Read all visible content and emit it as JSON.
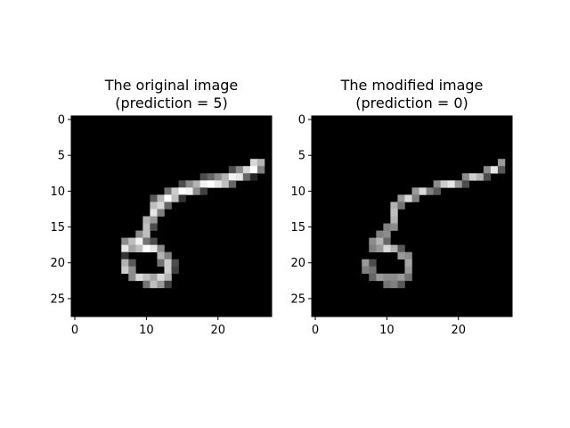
{
  "chart_data": [
    {
      "type": "heatmap",
      "colormap": "gray",
      "title_line1": "The original image",
      "title_line2": "(prediction = 5)",
      "grid": false,
      "xlim": [
        -0.5,
        27.5
      ],
      "ylim": [
        27.5,
        -0.5
      ],
      "xticks": [
        0,
        10,
        20
      ],
      "yticks": [
        0,
        5,
        10,
        15,
        20,
        25
      ],
      "value_range": [
        0,
        1
      ],
      "pixels": [
        [
          6,
          25,
          0.85
        ],
        [
          6,
          26,
          0.7
        ],
        [
          7,
          22,
          0.3
        ],
        [
          7,
          23,
          0.55
        ],
        [
          7,
          24,
          0.85
        ],
        [
          7,
          25,
          1.0
        ],
        [
          7,
          26,
          0.5
        ],
        [
          8,
          18,
          0.3
        ],
        [
          8,
          19,
          0.4
        ],
        [
          8,
          20,
          0.55
        ],
        [
          8,
          21,
          0.7
        ],
        [
          8,
          22,
          0.95
        ],
        [
          8,
          23,
          0.9
        ],
        [
          8,
          24,
          0.4
        ],
        [
          8,
          25,
          0.15
        ],
        [
          9,
          15,
          0.3
        ],
        [
          9,
          16,
          0.55
        ],
        [
          9,
          17,
          0.7
        ],
        [
          9,
          18,
          0.95
        ],
        [
          9,
          19,
          1.0
        ],
        [
          9,
          20,
          0.9
        ],
        [
          9,
          21,
          0.75
        ],
        [
          9,
          22,
          0.4
        ],
        [
          10,
          13,
          0.45
        ],
        [
          10,
          14,
          0.8
        ],
        [
          10,
          15,
          1.0
        ],
        [
          10,
          16,
          0.95
        ],
        [
          10,
          17,
          0.55
        ],
        [
          10,
          18,
          0.25
        ],
        [
          11,
          11,
          0.35
        ],
        [
          11,
          12,
          0.7
        ],
        [
          11,
          13,
          1.0
        ],
        [
          11,
          14,
          0.75
        ],
        [
          11,
          15,
          0.2
        ],
        [
          12,
          11,
          0.75
        ],
        [
          12,
          12,
          0.85
        ],
        [
          12,
          13,
          0.4
        ],
        [
          13,
          11,
          0.9
        ],
        [
          13,
          12,
          0.5
        ],
        [
          14,
          10,
          0.7
        ],
        [
          14,
          11,
          0.6
        ],
        [
          15,
          10,
          0.75
        ],
        [
          15,
          11,
          0.3
        ],
        [
          16,
          9,
          0.55
        ],
        [
          16,
          10,
          0.75
        ],
        [
          17,
          7,
          0.55
        ],
        [
          17,
          8,
          0.75
        ],
        [
          17,
          9,
          0.95
        ],
        [
          17,
          10,
          0.45
        ],
        [
          17,
          11,
          0.3
        ],
        [
          18,
          7,
          0.9
        ],
        [
          18,
          8,
          0.65
        ],
        [
          18,
          9,
          0.75
        ],
        [
          18,
          10,
          1.0
        ],
        [
          18,
          11,
          0.9
        ],
        [
          18,
          12,
          0.55
        ],
        [
          19,
          7,
          0.2
        ],
        [
          19,
          12,
          0.7
        ],
        [
          19,
          13,
          0.5
        ],
        [
          20,
          7,
          0.7
        ],
        [
          20,
          8,
          0.35
        ],
        [
          20,
          12,
          0.45
        ],
        [
          20,
          13,
          0.8
        ],
        [
          20,
          14,
          0.3
        ],
        [
          21,
          7,
          0.8
        ],
        [
          21,
          8,
          0.55
        ],
        [
          21,
          13,
          0.8
        ],
        [
          21,
          14,
          0.25
        ],
        [
          22,
          8,
          0.55
        ],
        [
          22,
          9,
          0.85
        ],
        [
          22,
          10,
          0.75
        ],
        [
          22,
          11,
          0.65
        ],
        [
          22,
          12,
          0.85
        ],
        [
          22,
          13,
          0.7
        ],
        [
          23,
          10,
          0.45
        ],
        [
          23,
          11,
          0.75
        ],
        [
          23,
          12,
          0.6
        ],
        [
          23,
          13,
          0.25
        ]
      ]
    },
    {
      "type": "heatmap",
      "colormap": "gray",
      "title_line1": "The modified image",
      "title_line2": "(prediction = 0)",
      "grid": false,
      "xlim": [
        -0.5,
        27.5
      ],
      "ylim": [
        27.5,
        -0.5
      ],
      "xticks": [
        0,
        10,
        20
      ],
      "yticks": [
        0,
        5,
        10,
        15,
        20,
        25
      ],
      "value_range": [
        0,
        1
      ],
      "pixels": [
        [
          6,
          26,
          0.6
        ],
        [
          7,
          24,
          0.55
        ],
        [
          7,
          25,
          0.9
        ],
        [
          7,
          26,
          0.35
        ],
        [
          8,
          21,
          0.55
        ],
        [
          8,
          22,
          0.8
        ],
        [
          8,
          23,
          0.7
        ],
        [
          8,
          24,
          0.3
        ],
        [
          9,
          17,
          0.55
        ],
        [
          9,
          18,
          0.8
        ],
        [
          9,
          19,
          0.9
        ],
        [
          9,
          20,
          0.6
        ],
        [
          9,
          21,
          0.3
        ],
        [
          10,
          14,
          0.6
        ],
        [
          10,
          15,
          0.85
        ],
        [
          10,
          16,
          0.5
        ],
        [
          10,
          17,
          0.35
        ],
        [
          11,
          12,
          0.6
        ],
        [
          11,
          13,
          0.85
        ],
        [
          11,
          14,
          0.5
        ],
        [
          12,
          11,
          0.7
        ],
        [
          12,
          12,
          0.45
        ],
        [
          13,
          11,
          0.75
        ],
        [
          14,
          11,
          0.7
        ],
        [
          15,
          10,
          0.5
        ],
        [
          15,
          11,
          0.55
        ],
        [
          16,
          9,
          0.5
        ],
        [
          16,
          10,
          0.55
        ],
        [
          17,
          8,
          0.55
        ],
        [
          17,
          9,
          0.7
        ],
        [
          17,
          10,
          0.4
        ],
        [
          18,
          8,
          0.5
        ],
        [
          18,
          9,
          0.6
        ],
        [
          18,
          10,
          0.85
        ],
        [
          18,
          11,
          0.7
        ],
        [
          18,
          12,
          0.35
        ],
        [
          19,
          12,
          0.6
        ],
        [
          19,
          13,
          0.55
        ],
        [
          20,
          7,
          0.6
        ],
        [
          20,
          8,
          0.3
        ],
        [
          20,
          13,
          0.65
        ],
        [
          21,
          7,
          0.5
        ],
        [
          21,
          8,
          0.45
        ],
        [
          21,
          13,
          0.6
        ],
        [
          22,
          8,
          0.4
        ],
        [
          22,
          9,
          0.6
        ],
        [
          22,
          10,
          0.55
        ],
        [
          22,
          11,
          0.55
        ],
        [
          22,
          12,
          0.6
        ],
        [
          22,
          13,
          0.45
        ],
        [
          23,
          10,
          0.45
        ],
        [
          23,
          11,
          0.5
        ],
        [
          23,
          12,
          0.35
        ]
      ]
    }
  ]
}
